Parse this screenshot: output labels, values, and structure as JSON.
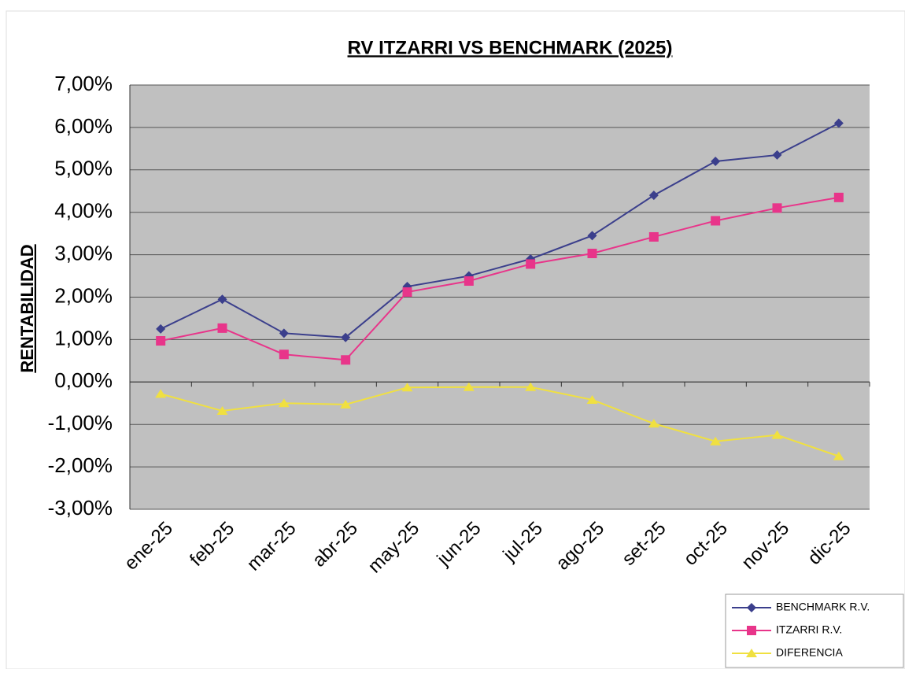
{
  "chart_data": {
    "type": "line",
    "title": "RV ITZARRI VS BENCHMARK (2025)",
    "y_label": "RENTABILIDAD",
    "categories": [
      "ene-25",
      "feb-25",
      "mar-25",
      "abr-25",
      "may-25",
      "jun-25",
      "jul-25",
      "ago-25",
      "set-25",
      "oct-25",
      "nov-25",
      "dic-25"
    ],
    "series": [
      {
        "name": "BENCHMARK R.V.",
        "color": "#3b3f8c",
        "marker": "diamond",
        "values": [
          1.25,
          1.95,
          1.15,
          1.05,
          2.25,
          2.5,
          2.9,
          3.45,
          4.4,
          5.2,
          5.35,
          6.1
        ]
      },
      {
        "name": "ITZARRI R.V.",
        "color": "#e8358a",
        "marker": "square",
        "values": [
          0.97,
          1.27,
          0.65,
          0.52,
          2.12,
          2.38,
          2.78,
          3.03,
          3.42,
          3.8,
          4.1,
          4.35
        ]
      },
      {
        "name": "DIFERENCIA",
        "color": "#f0e040",
        "marker": "triangle",
        "values": [
          -0.28,
          -0.68,
          -0.5,
          -0.53,
          -0.13,
          -0.12,
          -0.12,
          -0.42,
          -0.98,
          -1.4,
          -1.25,
          -1.75
        ]
      }
    ],
    "ylim": [
      -3,
      7
    ],
    "yticks": [
      {
        "value": -3,
        "label": "-3,00%"
      },
      {
        "value": -2,
        "label": "-2,00%"
      },
      {
        "value": -1,
        "label": "-1,00%"
      },
      {
        "value": 0,
        "label": "0,00%"
      },
      {
        "value": 1,
        "label": "1,00%"
      },
      {
        "value": 2,
        "label": "2,00%"
      },
      {
        "value": 3,
        "label": "3,00%"
      },
      {
        "value": 4,
        "label": "4,00%"
      },
      {
        "value": 5,
        "label": "5,00%"
      },
      {
        "value": 6,
        "label": "6,00%"
      },
      {
        "value": 7,
        "label": "7,00%"
      }
    ],
    "grid": true,
    "legend": "bottom-right",
    "plot_background": "#c0c0c0"
  }
}
